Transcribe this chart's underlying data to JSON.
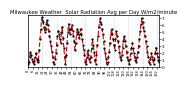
{
  "title": "Milwaukee Weather  Solar Radiation Avg per Day W/m2/minute",
  "values": [
    0.5,
    0.8,
    1.5,
    2.2,
    1.8,
    1.2,
    0.8,
    0.5,
    0.9,
    1.5,
    2.0,
    1.2,
    0.7,
    1.0,
    2.5,
    4.0,
    5.5,
    6.8,
    7.2,
    6.5,
    5.8,
    5.0,
    5.5,
    6.2,
    6.8,
    6.0,
    5.2,
    4.5,
    3.8,
    3.0,
    2.2,
    1.5,
    0.8,
    0.5,
    1.2,
    2.0,
    3.2,
    4.5,
    5.2,
    4.8,
    4.0,
    3.5,
    5.0,
    5.8,
    4.2,
    2.8,
    1.5,
    0.5,
    1.8,
    3.5,
    5.0,
    6.2,
    5.5,
    4.8,
    5.5,
    6.0,
    5.2,
    4.5,
    3.8,
    2.5,
    3.5,
    4.8,
    5.5,
    5.0,
    4.2,
    4.8,
    5.5,
    4.8,
    4.0,
    3.2,
    2.5,
    1.8,
    0.8,
    0.5,
    1.5,
    2.5,
    1.8,
    1.2,
    0.8,
    1.5,
    2.8,
    4.0,
    3.2,
    2.2,
    1.0,
    0.5,
    1.8,
    3.2,
    4.5,
    5.8,
    6.5,
    7.0,
    6.2,
    5.5,
    4.8,
    3.8,
    2.8,
    2.0,
    1.2,
    0.5,
    0.8,
    1.5,
    2.2,
    3.5,
    4.8,
    5.5,
    4.8,
    4.0,
    3.2,
    2.5,
    4.0,
    5.2,
    4.5,
    3.8,
    3.0,
    2.2,
    1.5,
    1.0,
    1.8,
    2.8,
    3.8,
    4.5,
    3.8,
    3.0,
    2.2,
    1.5,
    1.0,
    0.5,
    1.2,
    2.0,
    2.8,
    3.5,
    2.8,
    2.0,
    1.5,
    1.0,
    0.8,
    1.5,
    2.2,
    3.0,
    4.0,
    5.2,
    6.2,
    7.0,
    6.5,
    5.8,
    5.2,
    4.5,
    3.8,
    3.0,
    2.2,
    1.5,
    0.8,
    0.5,
    1.2,
    2.0,
    1.5,
    1.0,
    0.5,
    1.2,
    2.0,
    2.8,
    2.0,
    1.5,
    1.0,
    0.8
  ],
  "yticks": [
    0,
    1,
    2,
    3,
    4,
    5,
    6,
    7
  ],
  "ylim": [
    0,
    7.5
  ],
  "line_color": "#cc0000",
  "dot_color": "#000000",
  "background_color": "#ffffff",
  "grid_color": "#bbbbbb",
  "title_fontsize": 3.8,
  "tick_fontsize": 3.0,
  "grid_interval": 18
}
